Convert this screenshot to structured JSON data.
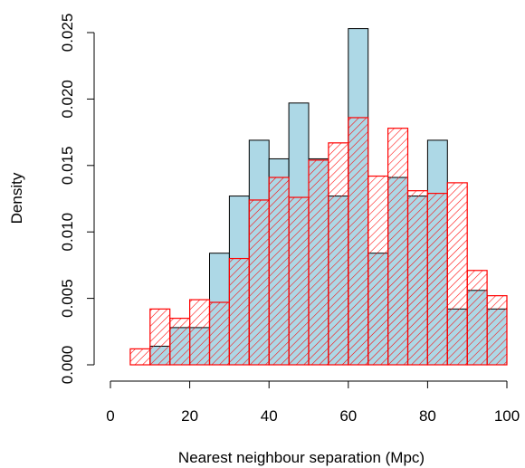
{
  "chart_data": {
    "type": "bar",
    "xlabel": "Nearest neighbour separation (Mpc)",
    "ylabel": "Density",
    "xlim": [
      0,
      100
    ],
    "ylim": [
      0,
      0.025
    ],
    "x_ticks": [
      "0",
      "20",
      "40",
      "60",
      "80",
      "100"
    ],
    "y_ticks": [
      "0.000",
      "0.005",
      "0.010",
      "0.015",
      "0.020",
      "0.025"
    ],
    "bin_width": 5,
    "series": [
      {
        "style": "filled",
        "fill_color": "#add8e6",
        "edge_color": "#000000",
        "bin_starts": [
          0,
          5,
          10,
          15,
          20,
          25,
          30,
          35,
          40,
          45,
          50,
          55,
          60,
          65,
          70,
          75,
          80,
          85,
          90,
          95
        ],
        "values": [
          0.0,
          0.0,
          0.0014,
          0.0028,
          0.0028,
          0.0084,
          0.0127,
          0.0169,
          0.0155,
          0.0197,
          0.0155,
          0.0127,
          0.0253,
          0.0084,
          0.0141,
          0.0127,
          0.0169,
          0.0042,
          0.0056,
          0.0042
        ]
      },
      {
        "style": "hatched",
        "edge_color": "#ff0000",
        "bin_starts": [
          0,
          5,
          10,
          15,
          20,
          25,
          30,
          35,
          40,
          45,
          50,
          55,
          60,
          65,
          70,
          75,
          80,
          85,
          90,
          95
        ],
        "values": [
          0.0,
          0.0012,
          0.0042,
          0.0035,
          0.0049,
          0.0047,
          0.008,
          0.0124,
          0.0141,
          0.0126,
          0.0154,
          0.0167,
          0.0186,
          0.0142,
          0.0178,
          0.0131,
          0.0129,
          0.0137,
          0.0071,
          0.0052
        ]
      }
    ]
  }
}
